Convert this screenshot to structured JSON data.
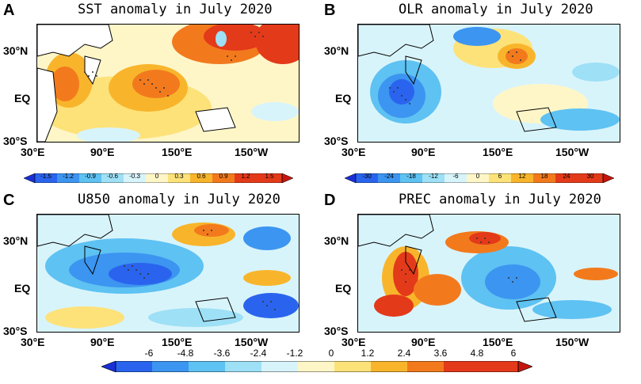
{
  "panels": [
    {
      "letter": "A",
      "title": "SST anomaly in July 2020"
    },
    {
      "letter": "B",
      "title": "OLR anomaly in July 2020"
    },
    {
      "letter": "C",
      "title": "U850 anomaly in July 2020"
    },
    {
      "letter": "D",
      "title": "PREC anomaly in July 2020"
    }
  ],
  "axes": {
    "y_labels": [
      "30°N",
      "EQ",
      "30°S"
    ],
    "x_labels": [
      "30°E",
      "90°E",
      "150°E",
      "150°W"
    ]
  },
  "colorbars": {
    "sst": [
      "-1.5",
      "-1.2",
      "-0.9",
      "-0.6",
      "-0.3",
      "0",
      "0.3",
      "0.6",
      "0.9",
      "1.2",
      "1.5"
    ],
    "olr": [
      "-30",
      "-24",
      "-18",
      "-12",
      "-6",
      "0",
      "6",
      "12",
      "18",
      "24",
      "30"
    ],
    "shared": [
      "-6",
      "-4.8",
      "-3.6",
      "-2.4",
      "-1.2",
      "0",
      "1.2",
      "2.4",
      "3.6",
      "4.8",
      "6"
    ]
  },
  "colors": {
    "palette": [
      "#1a2fd8",
      "#2a64ee",
      "#3c95f0",
      "#5ec2f2",
      "#9ee0f6",
      "#d8f4fb",
      "#fff6c8",
      "#fde27a",
      "#f8b52c",
      "#f27a1d",
      "#e33a1a",
      "#c4160e"
    ]
  }
}
